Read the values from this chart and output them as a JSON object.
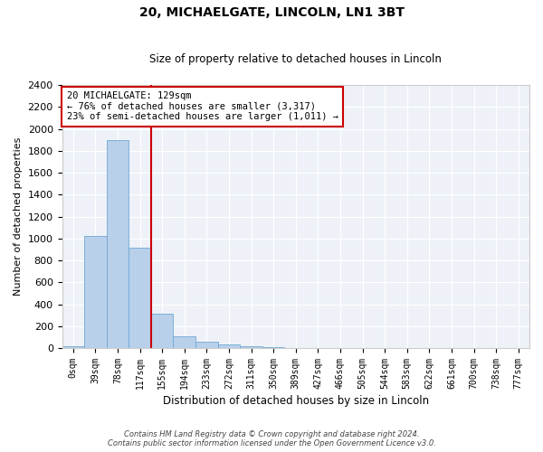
{
  "title_line1": "20, MICHAELGATE, LINCOLN, LN1 3BT",
  "title_line2": "Size of property relative to detached houses in Lincoln",
  "xlabel": "Distribution of detached houses by size in Lincoln",
  "ylabel": "Number of detached properties",
  "bar_labels": [
    "0sqm",
    "39sqm",
    "78sqm",
    "117sqm",
    "155sqm",
    "194sqm",
    "233sqm",
    "272sqm",
    "311sqm",
    "350sqm",
    "389sqm",
    "427sqm",
    "466sqm",
    "505sqm",
    "544sqm",
    "583sqm",
    "622sqm",
    "661sqm",
    "700sqm",
    "738sqm",
    "777sqm"
  ],
  "bar_values": [
    20,
    1020,
    1900,
    920,
    310,
    110,
    55,
    35,
    20,
    10,
    0,
    0,
    0,
    0,
    0,
    0,
    0,
    0,
    0,
    0,
    0
  ],
  "bar_color": "#b8d0ea",
  "bar_edge_color": "#6fa8d4",
  "vline_color": "#cc0000",
  "ylim": [
    0,
    2400
  ],
  "yticks": [
    0,
    200,
    400,
    600,
    800,
    1000,
    1200,
    1400,
    1600,
    1800,
    2000,
    2200,
    2400
  ],
  "annotation_text": "20 MICHAELGATE: 129sqm\n← 76% of detached houses are smaller (3,317)\n23% of semi-detached houses are larger (1,011) →",
  "annotation_box_color": "#ffffff",
  "annotation_box_edge": "#cc0000",
  "footer_line1": "Contains HM Land Registry data © Crown copyright and database right 2024.",
  "footer_line2": "Contains public sector information licensed under the Open Government Licence v3.0.",
  "axes_background": "#eef2f8",
  "fig_background": "#ffffff",
  "vline_index": 3.5
}
